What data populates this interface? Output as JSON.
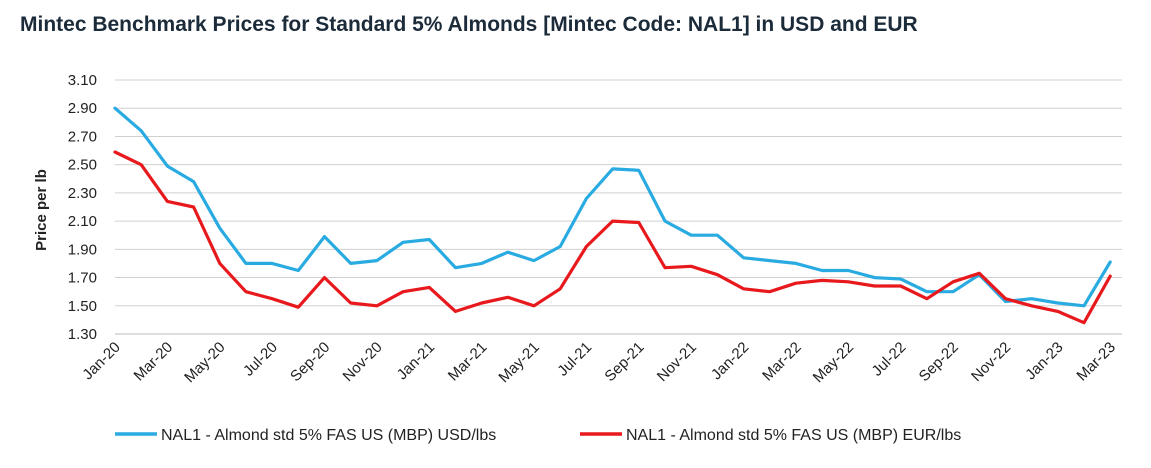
{
  "chart_data": {
    "type": "line",
    "title": "Mintec Benchmark Prices for Standard 5% Almonds [Mintec Code: NAL1] in USD and EUR",
    "ylabel": "Price per lb",
    "xlabel": "",
    "ylim": [
      1.3,
      3.1
    ],
    "yticks": [
      "3.10",
      "2.90",
      "2.70",
      "2.50",
      "2.30",
      "2.10",
      "1.90",
      "1.70",
      "1.50",
      "1.30"
    ],
    "xticks": [
      "Jan-20",
      "Mar-20",
      "May-20",
      "Jul-20",
      "Sep-20",
      "Nov-20",
      "Jan-21",
      "Mar-21",
      "May-21",
      "Jul-21",
      "Sep-21",
      "Nov-21",
      "Jan-22",
      "Mar-22",
      "May-22",
      "Jul-22",
      "Sep-22",
      "Nov-22",
      "Jan-23",
      "Mar-23"
    ],
    "grid": true,
    "legend_position": "bottom",
    "x": [
      "2020-01",
      "2020-02",
      "2020-03",
      "2020-04",
      "2020-05",
      "2020-06",
      "2020-07",
      "2020-08",
      "2020-09",
      "2020-10",
      "2020-11",
      "2020-12",
      "2021-01",
      "2021-02",
      "2021-03",
      "2021-04",
      "2021-05",
      "2021-06",
      "2021-07",
      "2021-08",
      "2021-09",
      "2021-10",
      "2021-11",
      "2021-12",
      "2022-01",
      "2022-02",
      "2022-03",
      "2022-04",
      "2022-05",
      "2022-06",
      "2022-07",
      "2022-08",
      "2022-09",
      "2022-10",
      "2022-11",
      "2022-12",
      "2023-01",
      "2023-02",
      "2023-03"
    ],
    "series": [
      {
        "name": "NAL1 - Almond std 5% FAS US (MBP) USD/lbs",
        "color": "#29abe2",
        "values": [
          2.9,
          2.74,
          2.49,
          2.38,
          2.05,
          1.8,
          1.8,
          1.75,
          1.99,
          1.8,
          1.82,
          1.95,
          1.97,
          1.77,
          1.8,
          1.88,
          1.82,
          1.92,
          2.26,
          2.47,
          2.46,
          2.1,
          2.0,
          2.0,
          1.84,
          1.82,
          1.8,
          1.75,
          1.75,
          1.7,
          1.69,
          1.6,
          1.6,
          1.72,
          1.53,
          1.55,
          1.52,
          1.5,
          1.81
        ]
      },
      {
        "name": "NAL1 - Almond std 5% FAS US (MBP) EUR/lbs",
        "color": "#e8191d",
        "values": [
          2.59,
          2.5,
          2.24,
          2.2,
          1.8,
          1.6,
          1.55,
          1.49,
          1.7,
          1.52,
          1.5,
          1.6,
          1.63,
          1.46,
          1.52,
          1.56,
          1.5,
          1.62,
          1.92,
          2.1,
          2.09,
          1.77,
          1.78,
          1.72,
          1.62,
          1.6,
          1.66,
          1.68,
          1.67,
          1.64,
          1.64,
          1.55,
          1.67,
          1.73,
          1.55,
          1.5,
          1.46,
          1.38,
          1.71
        ]
      }
    ]
  }
}
